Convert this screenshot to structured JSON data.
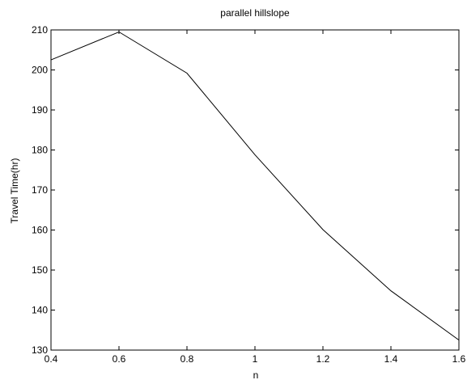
{
  "chart_data": {
    "type": "line",
    "title": "parallel hillslope",
    "xlabel": "n",
    "ylabel": "Travel Time(hr)",
    "xlim": [
      0.4,
      1.6
    ],
    "ylim": [
      130,
      210
    ],
    "xticks": [
      0.4,
      0.6,
      0.8,
      1,
      1.2,
      1.4,
      1.6
    ],
    "xtick_labels": [
      "0.4",
      "0.6",
      "0.8",
      "1",
      "1.2",
      "1.4",
      "1.6"
    ],
    "yticks": [
      130,
      140,
      150,
      160,
      170,
      180,
      190,
      200,
      210
    ],
    "ytick_labels": [
      "130",
      "140",
      "150",
      "160",
      "170",
      "180",
      "190",
      "200",
      "210"
    ],
    "grid": false,
    "series": [
      {
        "color": "#000000",
        "x": [
          0.4,
          0.6,
          0.8,
          1.0,
          1.2,
          1.4,
          1.6
        ],
        "y": [
          202.5,
          209.5,
          199.2,
          178.8,
          160.1,
          144.8,
          132.5
        ]
      }
    ]
  }
}
